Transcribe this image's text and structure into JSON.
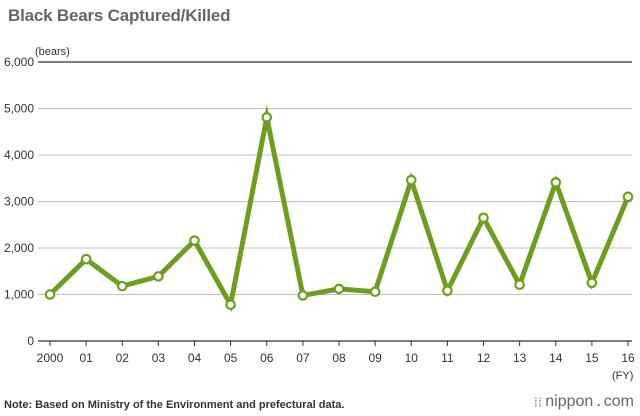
{
  "title": "Black Bears Captured/Killed",
  "note": "Note: Based on Ministry of the Environment and prefectural data.",
  "logo": {
    "name": "nippon",
    "dot": ".",
    "tld": "com",
    "mark": "⁞⁞"
  },
  "colors": {
    "line": "#6f9d1f",
    "axis": "#333333",
    "grid": "#aaaaaa",
    "top_rule": "#333333"
  },
  "chart_data": {
    "type": "line",
    "title": "Black Bears Captured/Killed",
    "ylabel": "(bears)",
    "xlabel": "(FY)",
    "ylim": [
      0,
      6000
    ],
    "yticks": [
      0,
      1000,
      2000,
      3000,
      4000,
      5000,
      6000
    ],
    "ytick_labels": [
      "0",
      "1,000",
      "2,000",
      "3,000",
      "4,000",
      "5,000",
      "6,000"
    ],
    "categories": [
      "2000",
      "01",
      "02",
      "03",
      "04",
      "05",
      "06",
      "07",
      "08",
      "09",
      "10",
      "11",
      "12",
      "13",
      "14",
      "15",
      "16"
    ],
    "series": [
      {
        "values": [
          1000,
          1760,
          1180,
          1390,
          2160,
          780,
          4810,
          980,
          1120,
          1060,
          3460,
          1080,
          2650,
          1210,
          3410,
          1250,
          3100
        ]
      }
    ],
    "grid": "horizontal"
  }
}
